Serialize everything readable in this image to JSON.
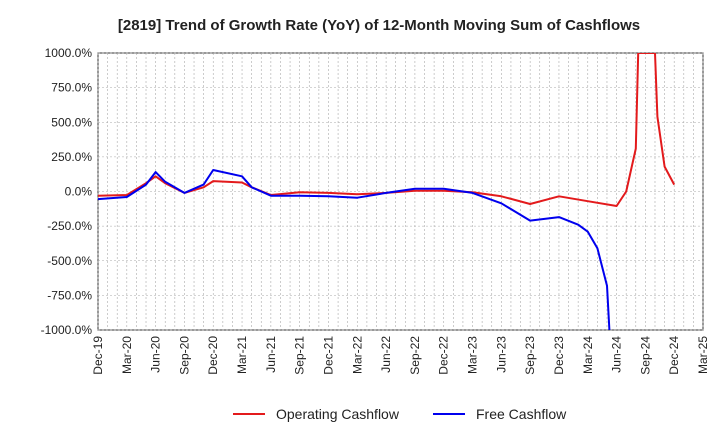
{
  "chart_data": {
    "type": "line",
    "title": "[2819]  Trend of Growth Rate (YoY) of 12-Month Moving Sum of Cashflows",
    "xlabel": "",
    "ylabel": "",
    "ylim": [
      -1000,
      1000
    ],
    "yticks": [
      1000,
      750,
      500,
      250,
      0,
      -250,
      -500,
      -750,
      -1000
    ],
    "ytick_labels": [
      "1000.0%",
      "750.0%",
      "500.0%",
      "250.0%",
      "0.0%",
      "-250.0%",
      "-500.0%",
      "-750.0%",
      "-1000.0%"
    ],
    "x_start": "2019-12",
    "x_end": "2025-03",
    "xtick_labels": [
      "Dec-19",
      "Mar-20",
      "Jun-20",
      "Sep-20",
      "Dec-20",
      "Mar-21",
      "Jun-21",
      "Sep-21",
      "Dec-21",
      "Mar-22",
      "Jun-22",
      "Sep-22",
      "Dec-22",
      "Mar-23",
      "Jun-23",
      "Sep-23",
      "Dec-23",
      "Mar-24",
      "Jun-24",
      "Sep-24",
      "Dec-24",
      "Mar-25"
    ],
    "grid": true,
    "legend_position": "bottom",
    "series": [
      {
        "name": "Operating Cashflow",
        "color": "#e31a1c",
        "x": [
          "2019-12",
          "2020-01",
          "2020-02",
          "2020-03",
          "2020-04",
          "2020-05",
          "2020-06",
          "2020-07",
          "2020-08",
          "2020-09",
          "2020-10",
          "2020-11",
          "2020-12",
          "2021-01",
          "2021-02",
          "2021-03",
          "2021-04",
          "2021-05",
          "2021-06",
          "2021-07",
          "2021-08",
          "2021-09",
          "2021-10",
          "2021-11",
          "2021-12",
          "2022-01",
          "2022-02",
          "2022-03",
          "2022-04",
          "2022-05",
          "2022-06",
          "2022-07",
          "2022-08",
          "2022-09",
          "2022-10",
          "2022-11",
          "2022-12",
          "2022-01b"
        ],
        "points": [
          [
            "2019-12",
            -30
          ],
          [
            "2020-03",
            -25
          ],
          [
            "2020-05",
            60
          ],
          [
            "2020-06",
            110
          ],
          [
            "2020-07",
            60
          ],
          [
            "2020-09",
            -10
          ],
          [
            "2020-11",
            30
          ],
          [
            "2020-12",
            75
          ],
          [
            "2021-03",
            65
          ],
          [
            "2021-04",
            30
          ],
          [
            "2021-06",
            -25
          ],
          [
            "2021-09",
            -5
          ],
          [
            "2021-12",
            -10
          ],
          [
            "2022-03",
            -20
          ],
          [
            "2022-06",
            -10
          ],
          [
            "2022-09",
            5
          ],
          [
            "2022-12",
            5
          ],
          [
            "2023-03",
            -5
          ],
          [
            "2023-06",
            -35
          ],
          [
            "2023-09",
            -90
          ],
          [
            "2023-12",
            -35
          ],
          [
            "2024-03",
            -70
          ],
          [
            "2024-06",
            -105
          ],
          [
            "2024-07",
            0
          ],
          [
            "2024-08",
            310
          ],
          [
            "2024-08b",
            1000
          ],
          [
            "2024-10",
            1000
          ],
          [
            "2024-10b",
            540
          ],
          [
            "2024-11",
            180
          ],
          [
            "2024-12",
            50
          ]
        ]
      },
      {
        "name": "Free Cashflow",
        "color": "#0000ee",
        "points": [
          [
            "2019-12",
            -55
          ],
          [
            "2020-03",
            -40
          ],
          [
            "2020-05",
            50
          ],
          [
            "2020-06",
            140
          ],
          [
            "2020-07",
            70
          ],
          [
            "2020-09",
            -10
          ],
          [
            "2020-11",
            50
          ],
          [
            "2020-12",
            155
          ],
          [
            "2021-03",
            110
          ],
          [
            "2021-04",
            30
          ],
          [
            "2021-06",
            -30
          ],
          [
            "2021-09",
            -30
          ],
          [
            "2021-12",
            -35
          ],
          [
            "2022-03",
            -45
          ],
          [
            "2022-06",
            -10
          ],
          [
            "2022-09",
            20
          ],
          [
            "2022-12",
            20
          ],
          [
            "2023-03",
            -10
          ],
          [
            "2023-06",
            -85
          ],
          [
            "2023-09",
            -210
          ],
          [
            "2023-12",
            -185
          ],
          [
            "2024-02",
            -240
          ],
          [
            "2024-03",
            -290
          ],
          [
            "2024-04",
            -410
          ],
          [
            "2024-05",
            -680
          ],
          [
            "2024-05b",
            -1000
          ]
        ]
      }
    ]
  }
}
